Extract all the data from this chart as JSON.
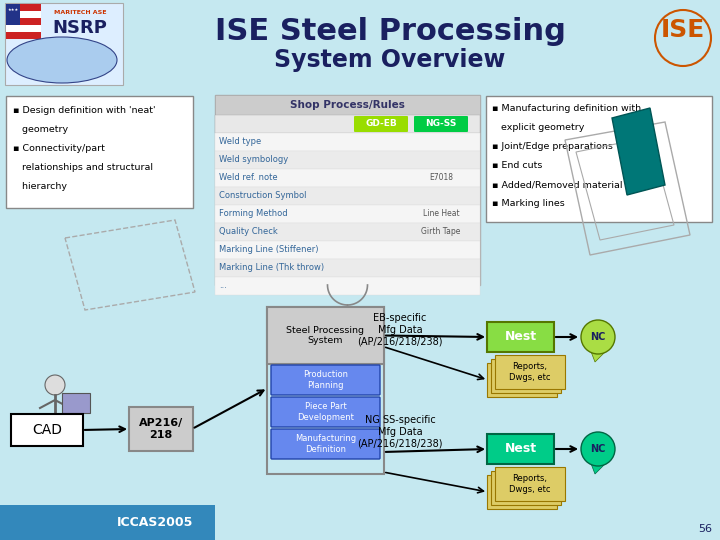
{
  "title_line1": "ISE Steel Processing",
  "title_line2": "System Overview",
  "bg_color": "#c5e8f0",
  "title_color": "#1a2060",
  "subtitle_color": "#1a2060",
  "left_box_texts": [
    "▪ Design definition with 'neat'",
    "   geometry",
    "▪ Connectivity/part",
    "   relationships and structural",
    "   hierarchy"
  ],
  "right_box_texts": [
    "▪ Manufacturing definition with",
    "   explicit geometry",
    "▪ Joint/Edge preparations",
    "▪ End cuts",
    "▪ Added/Removed material",
    "▪ Marking lines"
  ],
  "shop_table_title": "Shop Process/Rules",
  "shop_col1": "GD-EB",
  "shop_col2": "NG-SS",
  "shop_col1_color": "#99dd00",
  "shop_col2_color": "#00cc44",
  "shop_rows": [
    "Weld type",
    "Weld symbology",
    "Weld ref. note",
    "Construction Symbol",
    "Forming Method",
    "Quality Check",
    "Marking Line (Stiffener)",
    "Marking Line (Thk throw)",
    "..."
  ],
  "ng_ss_vals": {
    "2": "E7018",
    "4": "Line Heat",
    "5": "Girth Tape"
  },
  "main_box_label": "Steel Processing\nSystem",
  "sub_box_labels": [
    "Production\nPlanning",
    "Piece Part\nDevelopment",
    "Manufacturing\nDefinition"
  ],
  "sub_box_color": "#6688ee",
  "ap_label": "AP216/\n218",
  "cad_label": "CAD",
  "eb_label": "EB-specific\nMfg Data\n(AP/216/218/238)",
  "ng_label": "NG SS-specific\nMfg Data\n(AP/216/218/238)",
  "nest1_color": "#88dd44",
  "nest2_color": "#00cc88",
  "nc1_color": "#aadd44",
  "nc2_color": "#00cc88",
  "reports_color": "#ddcc66",
  "footer_bg": "#3388bb",
  "footer_text": "ICCAS2005",
  "page_num": "56"
}
